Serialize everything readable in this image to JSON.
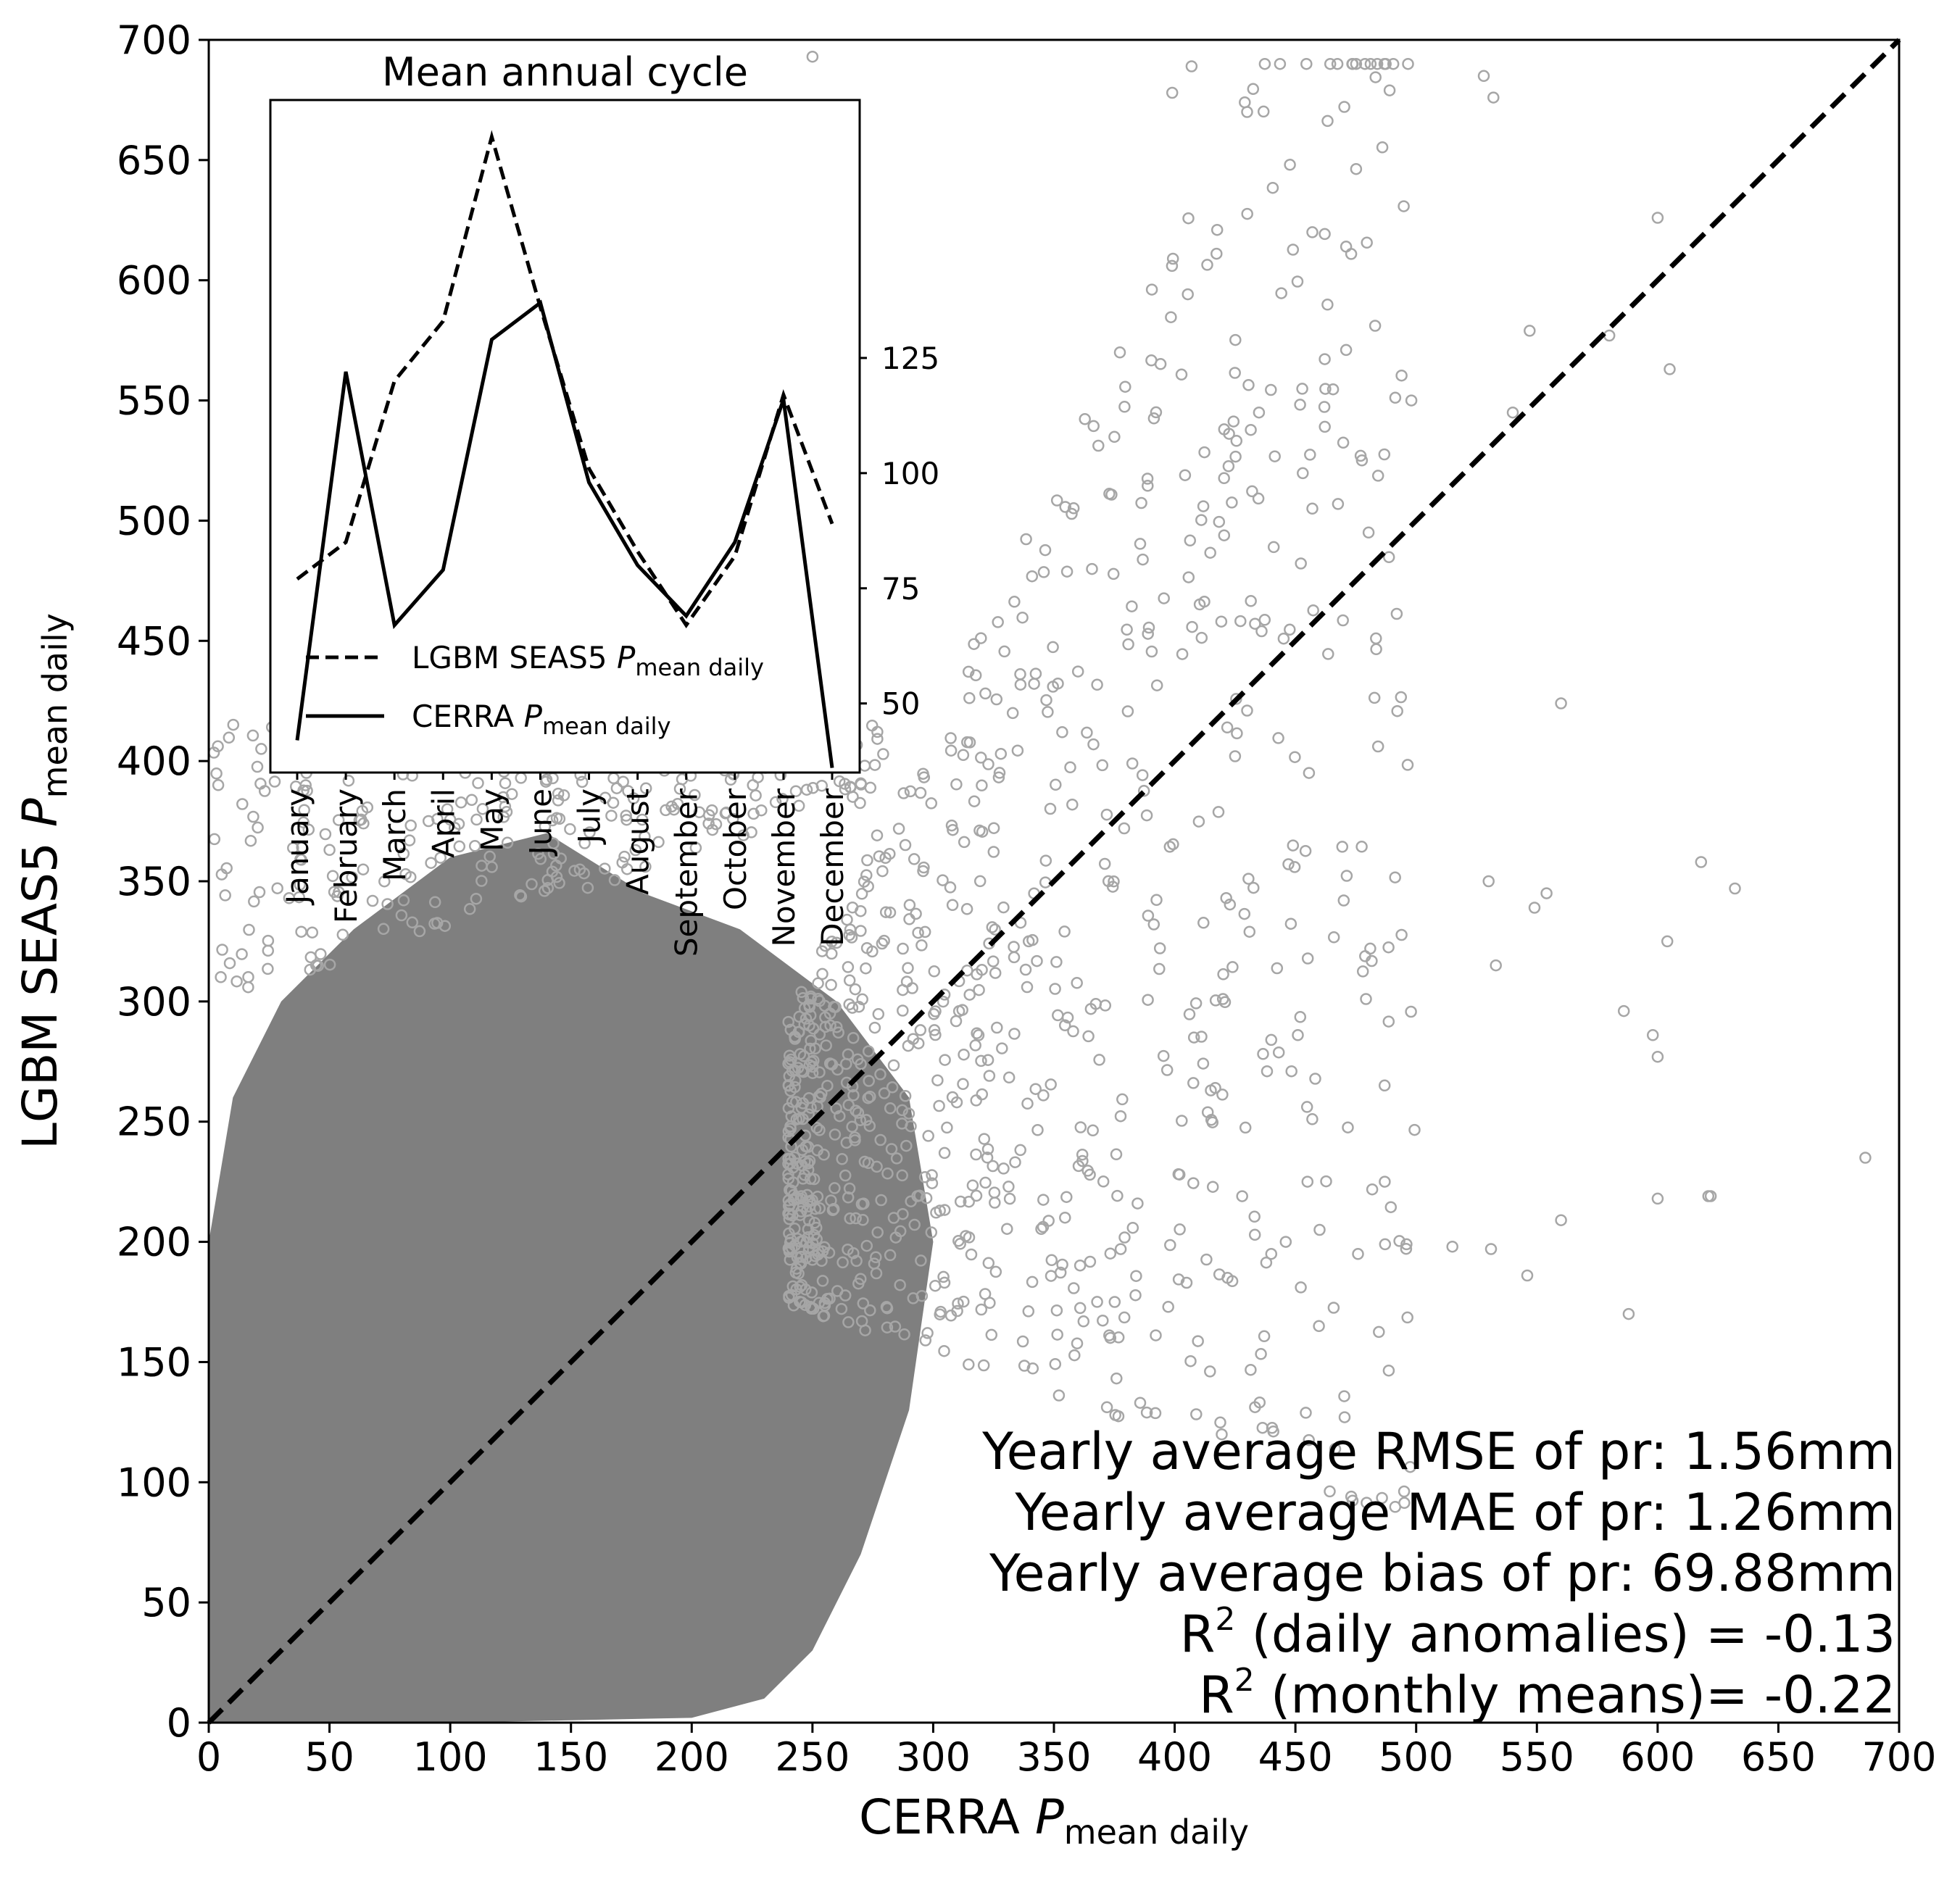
{
  "chart_data": [
    {
      "type": "scatter",
      "xlabel": "CERRA P_mean daily",
      "ylabel": "LGBM SEAS5 P_mean daily",
      "xlabel_parts": {
        "prefix": "CERRA ",
        "var": "P",
        "sub": "mean daily"
      },
      "ylabel_parts": {
        "prefix": "LGBM SEAS5 ",
        "var": "P",
        "sub": "mean daily"
      },
      "xlim": [
        0,
        700
      ],
      "ylim": [
        0,
        700
      ],
      "xticks": [
        "0",
        "50",
        "100",
        "150",
        "200",
        "250",
        "300",
        "350",
        "400",
        "450",
        "500",
        "550",
        "600",
        "650",
        "700"
      ],
      "yticks": [
        "0",
        "50",
        "100",
        "150",
        "200",
        "250",
        "300",
        "350",
        "400",
        "450",
        "500",
        "550",
        "600",
        "650",
        "700"
      ],
      "grid": false,
      "marker": "open circle",
      "point_color": "#7f7f7f",
      "reference_line": {
        "style": "dashed",
        "color": "#000000",
        "from": [
          0,
          0
        ],
        "to": [
          700,
          700
        ]
      },
      "point_density_description": "dense cloud of many thousands of points concentrated in 0–300 range, sparse scatter extending to ~700",
      "sample_points": [
        [
          250,
          693
        ],
        [
          532,
          676
        ],
        [
          407,
          689
        ],
        [
          399,
          678
        ],
        [
          430,
          670
        ],
        [
          528,
          685
        ],
        [
          457,
          620
        ],
        [
          471,
          571
        ],
        [
          600,
          626
        ],
        [
          605,
          563
        ],
        [
          540,
          545
        ],
        [
          547,
          579
        ],
        [
          580,
          577
        ],
        [
          489,
          679
        ],
        [
          471,
          614
        ],
        [
          498,
          550
        ],
        [
          477,
          527
        ],
        [
          457,
          505
        ],
        [
          441,
          489
        ],
        [
          436,
          454
        ],
        [
          430,
          421
        ],
        [
          425,
          402
        ],
        [
          560,
          424
        ],
        [
          618,
          358
        ],
        [
          632,
          347
        ],
        [
          530,
          350
        ],
        [
          533,
          315
        ],
        [
          549,
          339
        ],
        [
          554,
          345
        ],
        [
          496,
          199
        ],
        [
          515,
          198
        ],
        [
          531,
          197
        ],
        [
          546,
          186
        ],
        [
          560,
          209
        ],
        [
          588,
          170
        ],
        [
          600,
          218
        ],
        [
          622,
          219
        ],
        [
          686,
          235
        ],
        [
          586,
          296
        ],
        [
          598,
          286
        ],
        [
          600,
          277
        ],
        [
          604,
          325
        ],
        [
          621,
          219
        ],
        [
          451,
          286
        ],
        [
          440,
          284
        ],
        [
          431,
          329
        ],
        [
          420,
          301
        ],
        [
          415,
          263
        ],
        [
          408,
          285
        ],
        [
          402,
          228
        ],
        [
          470,
          342
        ],
        [
          481,
          322
        ],
        [
          487,
          225
        ],
        [
          460,
          205
        ],
        [
          455,
          225
        ],
        [
          446,
          200
        ],
        [
          440,
          195
        ]
      ]
    },
    {
      "type": "line",
      "title": "Mean annual cycle",
      "categories": [
        "January",
        "February",
        "March",
        "April",
        "May",
        "June",
        "July",
        "August",
        "September",
        "October",
        "November",
        "December"
      ],
      "ylim": [
        35,
        181
      ],
      "yticks": [
        50,
        75,
        100,
        125
      ],
      "series": [
        {
          "name": "LGBM SEAS5 P_mean daily",
          "name_parts": {
            "prefix": "LGBM SEAS5 ",
            "var": "P",
            "sub": "mean daily"
          },
          "style": "dashed",
          "color": "#000000",
          "values": [
            77,
            85,
            120,
            133,
            173,
            136,
            101,
            83,
            67,
            82,
            117,
            89
          ]
        },
        {
          "name": "CERRA P_mean daily",
          "name_parts": {
            "prefix": "CERRA ",
            "var": "P",
            "sub": "mean daily"
          },
          "style": "solid",
          "color": "#000000",
          "values": [
            42,
            122,
            67,
            79,
            129,
            137,
            98,
            80,
            69,
            85,
            116,
            36
          ]
        }
      ],
      "legend_placement": "lower-left"
    }
  ],
  "annotations": {
    "rmse": "Yearly average RMSE of pr: 1.56mm",
    "mae": "Yearly average MAE of pr: 1.26mm",
    "bias": "Yearly average bias of pr: 69.88mm",
    "r2_daily": {
      "prefix": "R",
      "sup": "2",
      "rest": " (daily anomalies) = -0.13"
    },
    "r2_monthly": {
      "prefix": "R",
      "sup": "2",
      "rest": " (monthly means)= -0.22"
    }
  }
}
